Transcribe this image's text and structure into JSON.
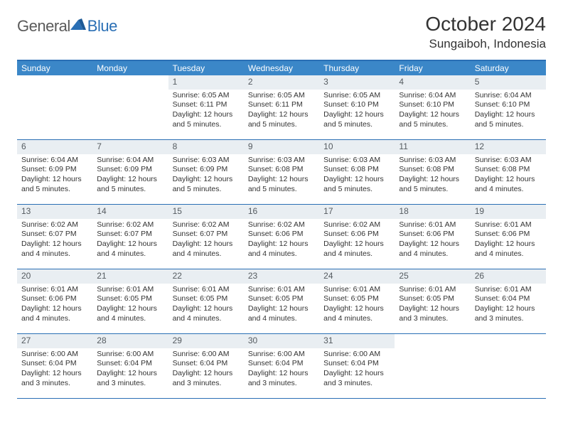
{
  "logo": {
    "left": "General",
    "right": "Blue"
  },
  "title": "October 2024",
  "location": "Sungaiboh, Indonesia",
  "header_color": "#3b87c8",
  "border_color": "#2a6fb5",
  "daynum_bg": "#e9eef2",
  "day_labels": [
    "Sunday",
    "Monday",
    "Tuesday",
    "Wednesday",
    "Thursday",
    "Friday",
    "Saturday"
  ],
  "weeks": [
    [
      null,
      null,
      {
        "n": "1",
        "sr": "Sunrise: 6:05 AM",
        "ss": "Sunset: 6:11 PM",
        "dl": "Daylight: 12 hours and 5 minutes."
      },
      {
        "n": "2",
        "sr": "Sunrise: 6:05 AM",
        "ss": "Sunset: 6:11 PM",
        "dl": "Daylight: 12 hours and 5 minutes."
      },
      {
        "n": "3",
        "sr": "Sunrise: 6:05 AM",
        "ss": "Sunset: 6:10 PM",
        "dl": "Daylight: 12 hours and 5 minutes."
      },
      {
        "n": "4",
        "sr": "Sunrise: 6:04 AM",
        "ss": "Sunset: 6:10 PM",
        "dl": "Daylight: 12 hours and 5 minutes."
      },
      {
        "n": "5",
        "sr": "Sunrise: 6:04 AM",
        "ss": "Sunset: 6:10 PM",
        "dl": "Daylight: 12 hours and 5 minutes."
      }
    ],
    [
      {
        "n": "6",
        "sr": "Sunrise: 6:04 AM",
        "ss": "Sunset: 6:09 PM",
        "dl": "Daylight: 12 hours and 5 minutes."
      },
      {
        "n": "7",
        "sr": "Sunrise: 6:04 AM",
        "ss": "Sunset: 6:09 PM",
        "dl": "Daylight: 12 hours and 5 minutes."
      },
      {
        "n": "8",
        "sr": "Sunrise: 6:03 AM",
        "ss": "Sunset: 6:09 PM",
        "dl": "Daylight: 12 hours and 5 minutes."
      },
      {
        "n": "9",
        "sr": "Sunrise: 6:03 AM",
        "ss": "Sunset: 6:08 PM",
        "dl": "Daylight: 12 hours and 5 minutes."
      },
      {
        "n": "10",
        "sr": "Sunrise: 6:03 AM",
        "ss": "Sunset: 6:08 PM",
        "dl": "Daylight: 12 hours and 5 minutes."
      },
      {
        "n": "11",
        "sr": "Sunrise: 6:03 AM",
        "ss": "Sunset: 6:08 PM",
        "dl": "Daylight: 12 hours and 5 minutes."
      },
      {
        "n": "12",
        "sr": "Sunrise: 6:03 AM",
        "ss": "Sunset: 6:08 PM",
        "dl": "Daylight: 12 hours and 4 minutes."
      }
    ],
    [
      {
        "n": "13",
        "sr": "Sunrise: 6:02 AM",
        "ss": "Sunset: 6:07 PM",
        "dl": "Daylight: 12 hours and 4 minutes."
      },
      {
        "n": "14",
        "sr": "Sunrise: 6:02 AM",
        "ss": "Sunset: 6:07 PM",
        "dl": "Daylight: 12 hours and 4 minutes."
      },
      {
        "n": "15",
        "sr": "Sunrise: 6:02 AM",
        "ss": "Sunset: 6:07 PM",
        "dl": "Daylight: 12 hours and 4 minutes."
      },
      {
        "n": "16",
        "sr": "Sunrise: 6:02 AM",
        "ss": "Sunset: 6:06 PM",
        "dl": "Daylight: 12 hours and 4 minutes."
      },
      {
        "n": "17",
        "sr": "Sunrise: 6:02 AM",
        "ss": "Sunset: 6:06 PM",
        "dl": "Daylight: 12 hours and 4 minutes."
      },
      {
        "n": "18",
        "sr": "Sunrise: 6:01 AM",
        "ss": "Sunset: 6:06 PM",
        "dl": "Daylight: 12 hours and 4 minutes."
      },
      {
        "n": "19",
        "sr": "Sunrise: 6:01 AM",
        "ss": "Sunset: 6:06 PM",
        "dl": "Daylight: 12 hours and 4 minutes."
      }
    ],
    [
      {
        "n": "20",
        "sr": "Sunrise: 6:01 AM",
        "ss": "Sunset: 6:06 PM",
        "dl": "Daylight: 12 hours and 4 minutes."
      },
      {
        "n": "21",
        "sr": "Sunrise: 6:01 AM",
        "ss": "Sunset: 6:05 PM",
        "dl": "Daylight: 12 hours and 4 minutes."
      },
      {
        "n": "22",
        "sr": "Sunrise: 6:01 AM",
        "ss": "Sunset: 6:05 PM",
        "dl": "Daylight: 12 hours and 4 minutes."
      },
      {
        "n": "23",
        "sr": "Sunrise: 6:01 AM",
        "ss": "Sunset: 6:05 PM",
        "dl": "Daylight: 12 hours and 4 minutes."
      },
      {
        "n": "24",
        "sr": "Sunrise: 6:01 AM",
        "ss": "Sunset: 6:05 PM",
        "dl": "Daylight: 12 hours and 4 minutes."
      },
      {
        "n": "25",
        "sr": "Sunrise: 6:01 AM",
        "ss": "Sunset: 6:05 PM",
        "dl": "Daylight: 12 hours and 3 minutes."
      },
      {
        "n": "26",
        "sr": "Sunrise: 6:01 AM",
        "ss": "Sunset: 6:04 PM",
        "dl": "Daylight: 12 hours and 3 minutes."
      }
    ],
    [
      {
        "n": "27",
        "sr": "Sunrise: 6:00 AM",
        "ss": "Sunset: 6:04 PM",
        "dl": "Daylight: 12 hours and 3 minutes."
      },
      {
        "n": "28",
        "sr": "Sunrise: 6:00 AM",
        "ss": "Sunset: 6:04 PM",
        "dl": "Daylight: 12 hours and 3 minutes."
      },
      {
        "n": "29",
        "sr": "Sunrise: 6:00 AM",
        "ss": "Sunset: 6:04 PM",
        "dl": "Daylight: 12 hours and 3 minutes."
      },
      {
        "n": "30",
        "sr": "Sunrise: 6:00 AM",
        "ss": "Sunset: 6:04 PM",
        "dl": "Daylight: 12 hours and 3 minutes."
      },
      {
        "n": "31",
        "sr": "Sunrise: 6:00 AM",
        "ss": "Sunset: 6:04 PM",
        "dl": "Daylight: 12 hours and 3 minutes."
      },
      null,
      null
    ]
  ]
}
